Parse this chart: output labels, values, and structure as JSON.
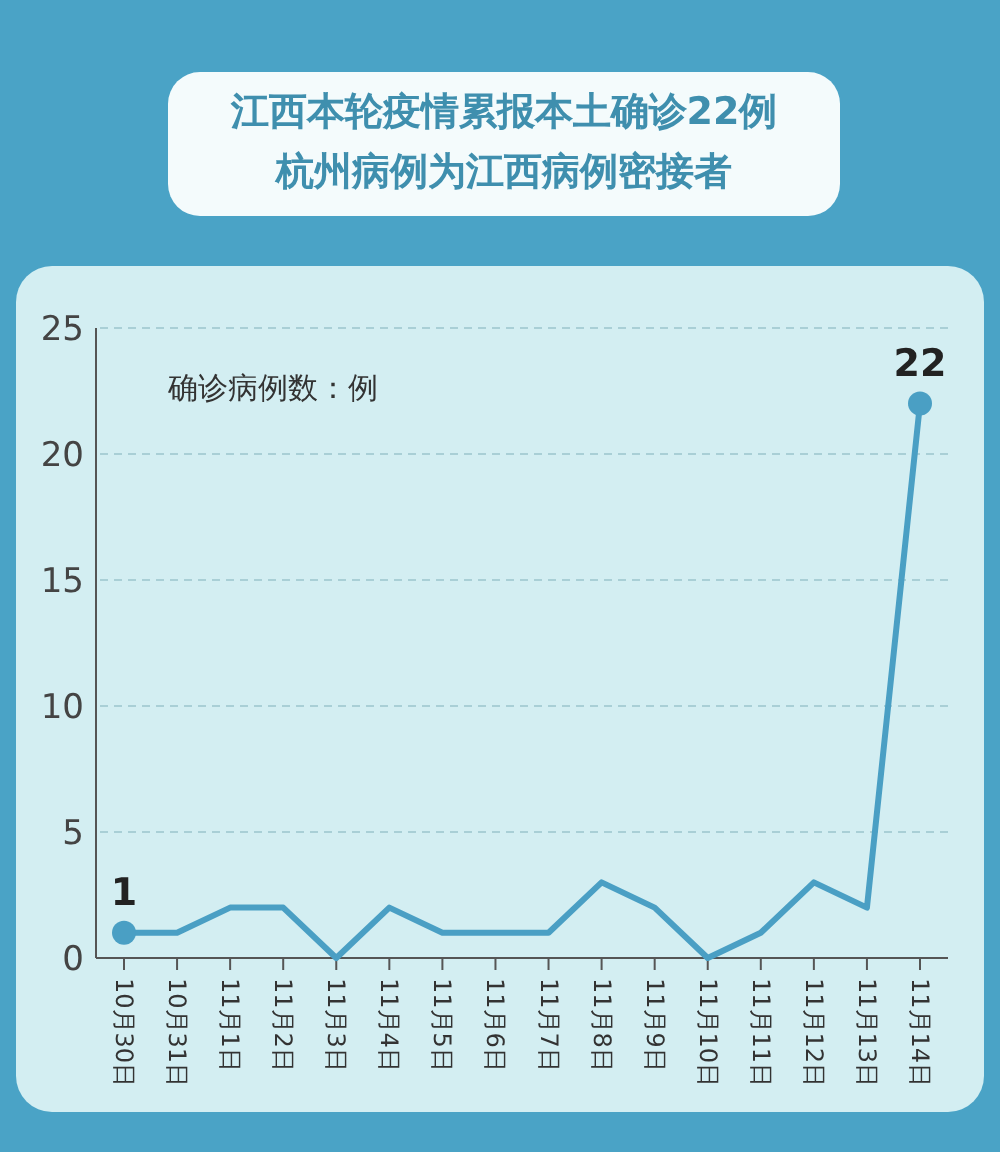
{
  "chart_data": {
    "type": "line",
    "title": "江西本轮疫情累报本土确诊22例",
    "subtitle": "杭州病例为江西病例密接者",
    "ylabel": "确诊病例数：例",
    "categories": [
      "10月30日",
      "10月31日",
      "11月1日",
      "11月2日",
      "11月3日",
      "11月4日",
      "11月5日",
      "11月6日",
      "11月7日",
      "11月8日",
      "11月9日",
      "11月10日",
      "11月11日",
      "11月12日",
      "11月13日",
      "11月14日"
    ],
    "values": [
      1,
      1,
      2,
      2,
      0,
      2,
      1,
      1,
      1,
      3,
      2,
      0,
      1,
      3,
      2,
      22
    ],
    "value_labels": [
      "1",
      null,
      null,
      null,
      null,
      null,
      null,
      null,
      null,
      null,
      null,
      null,
      null,
      null,
      null,
      "22"
    ],
    "color": "#4a9fc4",
    "ylim": [
      0,
      25
    ],
    "yticks": [
      0,
      5,
      10,
      15,
      20,
      25
    ],
    "grid": "y",
    "line_style": "solid"
  }
}
